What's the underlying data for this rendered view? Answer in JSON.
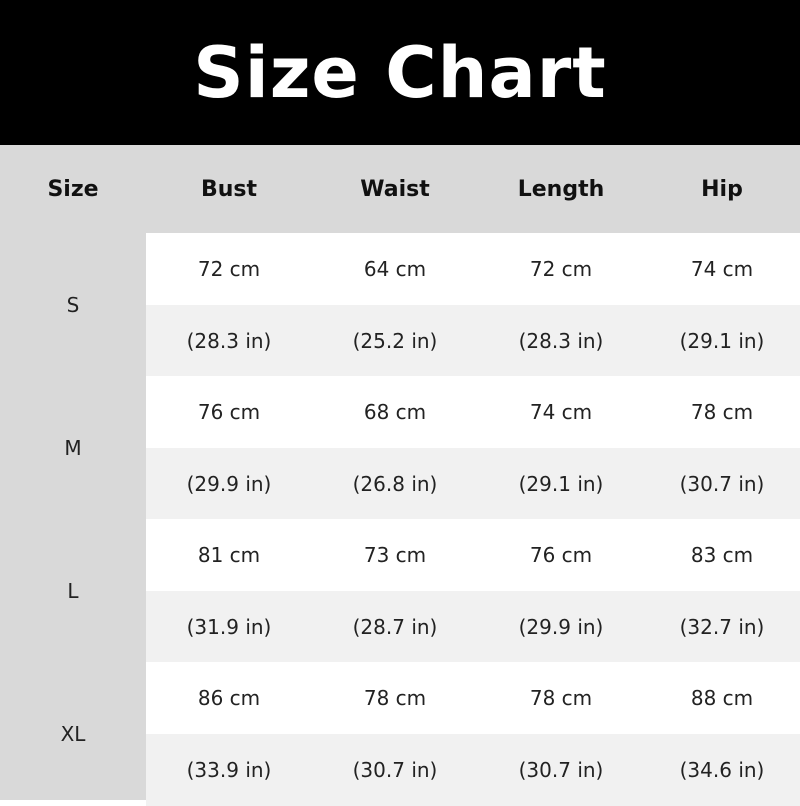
{
  "title": "Size Chart",
  "headers": [
    "Size",
    "Bust",
    "Waist",
    "Length",
    "Hip"
  ],
  "rows": [
    {
      "size": "S",
      "cm": [
        "72 cm",
        "64 cm",
        "72 cm",
        "74 cm"
      ],
      "in": [
        "(28.3 in)",
        "(25.2 in)",
        "(28.3 in)",
        "(29.1 in)"
      ]
    },
    {
      "size": "M",
      "cm": [
        "76 cm",
        "68 cm",
        "74 cm",
        "78 cm"
      ],
      "in": [
        "(29.9 in)",
        "(26.8 in)",
        "(29.1 in)",
        "(30.7 in)"
      ]
    },
    {
      "size": "L",
      "cm": [
        "81 cm",
        "73 cm",
        "76 cm",
        "83 cm"
      ],
      "in": [
        "(31.9 in)",
        "(28.7 in)",
        "(29.9 in)",
        "(32.7 in)"
      ]
    },
    {
      "size": "XL",
      "cm": [
        "86 cm",
        "78 cm",
        "78 cm",
        "88 cm"
      ],
      "in": [
        "(33.9 in)",
        "(30.7 in)",
        "(30.7 in)",
        "(34.6 in)"
      ]
    }
  ]
}
